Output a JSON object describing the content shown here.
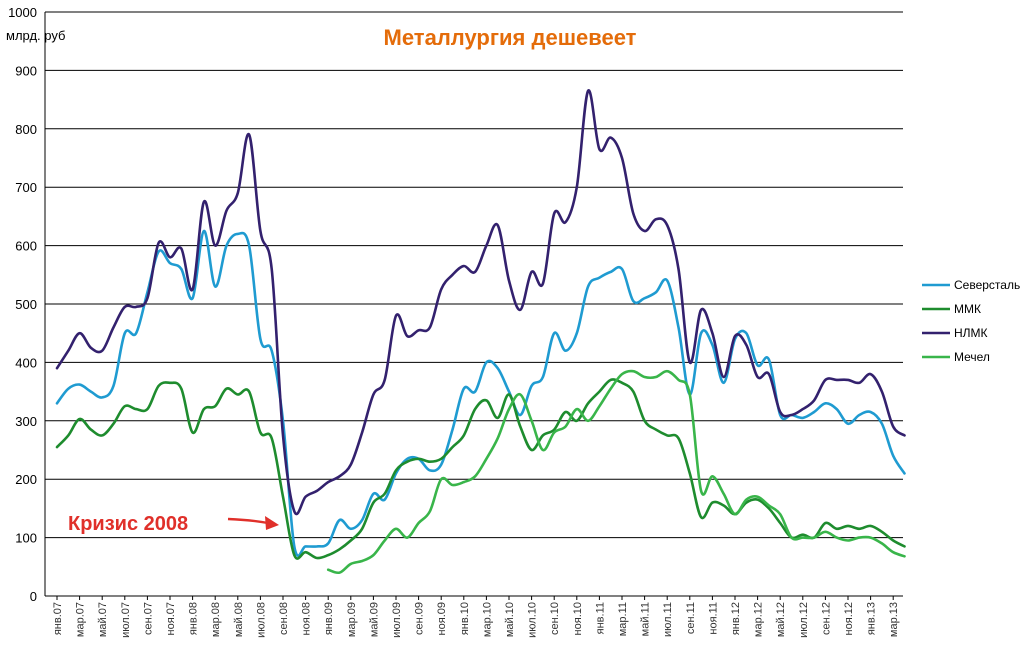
{
  "chart_data": {
    "type": "line",
    "title": "Металлургия дешевеет",
    "ylabel": "млрд. руб",
    "xlabel": "",
    "ylim": [
      0,
      1000
    ],
    "yticks": [
      0,
      100,
      200,
      300,
      400,
      500,
      600,
      700,
      800,
      900,
      1000
    ],
    "grid": true,
    "legend": "right",
    "x_tick_labels": [
      "янв.07",
      "мар.07",
      "май.07",
      "июл.07",
      "сен.07",
      "ноя.07",
      "янв.08",
      "мар.08",
      "май.08",
      "июл.08",
      "сен.08",
      "ноя.08",
      "янв.09",
      "мар.09",
      "май.09",
      "июл.09",
      "сен.09",
      "ноя.09",
      "янв.10",
      "мар.10",
      "май.10",
      "июл.10",
      "сен.10",
      "ноя.10",
      "янв.11",
      "мар.11",
      "май.11",
      "июл.11",
      "сен.11",
      "ноя.11",
      "янв.12",
      "мар.12",
      "май.12",
      "июл.12",
      "сен.12",
      "ноя.12",
      "янв.13",
      "мар.13"
    ],
    "x_month_count": 76,
    "series": [
      {
        "name": "Северсталь",
        "color": "#1f9bd1",
        "values": [
          330,
          355,
          362,
          350,
          340,
          360,
          450,
          450,
          520,
          590,
          570,
          560,
          510,
          625,
          530,
          600,
          620,
          600,
          440,
          420,
          300,
          85,
          85,
          85,
          90,
          130,
          115,
          130,
          175,
          165,
          210,
          235,
          235,
          215,
          225,
          285,
          355,
          350,
          400,
          390,
          350,
          310,
          360,
          375,
          450,
          420,
          450,
          530,
          545,
          555,
          560,
          505,
          510,
          520,
          540,
          460,
          345,
          450,
          430,
          365,
          440,
          450,
          395,
          405,
          310,
          310,
          305,
          315,
          330,
          320,
          295,
          310,
          315,
          295,
          240,
          210
        ]
      },
      {
        "name": "ММК",
        "color": "#1e8c2e",
        "values": [
          255,
          275,
          303,
          285,
          275,
          295,
          325,
          320,
          320,
          360,
          365,
          355,
          280,
          320,
          325,
          355,
          345,
          350,
          280,
          270,
          170,
          70,
          75,
          65,
          70,
          80,
          95,
          115,
          160,
          175,
          215,
          230,
          235,
          230,
          235,
          255,
          275,
          320,
          335,
          305,
          345,
          290,
          250,
          275,
          285,
          315,
          300,
          330,
          350,
          370,
          365,
          350,
          300,
          285,
          275,
          270,
          210,
          135,
          160,
          155,
          140,
          160,
          165,
          150,
          125,
          100,
          105,
          100,
          125,
          115,
          120,
          115,
          120,
          110,
          95,
          85
        ]
      },
      {
        "name": "НЛМК",
        "color": "#33216e",
        "values": [
          390,
          420,
          450,
          425,
          420,
          460,
          495,
          495,
          510,
          605,
          580,
          595,
          525,
          675,
          600,
          660,
          690,
          790,
          625,
          560,
          275,
          145,
          170,
          180,
          195,
          205,
          225,
          280,
          345,
          370,
          480,
          445,
          455,
          460,
          525,
          550,
          565,
          555,
          600,
          635,
          540,
          490,
          555,
          535,
          655,
          640,
          700,
          865,
          765,
          785,
          750,
          655,
          625,
          645,
          635,
          560,
          400,
          490,
          450,
          375,
          445,
          430,
          375,
          380,
          315,
          310,
          320,
          335,
          370,
          370,
          370,
          365,
          380,
          350,
          290,
          275
        ]
      },
      {
        "name": "Мечел",
        "color": "#39b54a",
        "values": [
          null,
          null,
          null,
          null,
          null,
          null,
          null,
          null,
          null,
          null,
          null,
          null,
          null,
          null,
          null,
          null,
          null,
          null,
          null,
          null,
          null,
          null,
          null,
          null,
          45,
          40,
          55,
          60,
          70,
          95,
          115,
          100,
          125,
          145,
          200,
          190,
          195,
          205,
          235,
          270,
          320,
          345,
          300,
          250,
          280,
          290,
          320,
          300,
          325,
          355,
          380,
          385,
          375,
          375,
          385,
          370,
          345,
          180,
          205,
          175,
          140,
          165,
          170,
          155,
          140,
          100,
          100,
          100,
          110,
          100,
          95,
          100,
          100,
          90,
          75,
          68
        ]
      }
    ],
    "annotations": [
      {
        "text": "Кризис 2008",
        "points_to": "окт.08"
      }
    ]
  }
}
